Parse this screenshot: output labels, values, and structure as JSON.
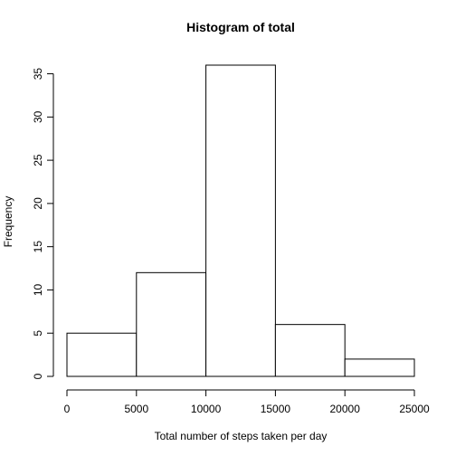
{
  "chart_data": {
    "type": "bar",
    "title": "Histogram of total",
    "xlabel": "Total number of steps taken per day",
    "ylabel": "Frequency",
    "bins": [
      {
        "start": 0,
        "end": 5000,
        "count": 5
      },
      {
        "start": 5000,
        "end": 10000,
        "count": 12
      },
      {
        "start": 10000,
        "end": 15000,
        "count": 36
      },
      {
        "start": 15000,
        "end": 20000,
        "count": 6
      },
      {
        "start": 20000,
        "end": 25000,
        "count": 2
      }
    ],
    "xlim": [
      0,
      25000
    ],
    "ylim": [
      0,
      36
    ],
    "x_ticks": [
      0,
      5000,
      10000,
      15000,
      20000,
      25000
    ],
    "y_ticks": [
      0,
      5,
      10,
      15,
      20,
      25,
      30,
      35
    ],
    "grid": false
  }
}
